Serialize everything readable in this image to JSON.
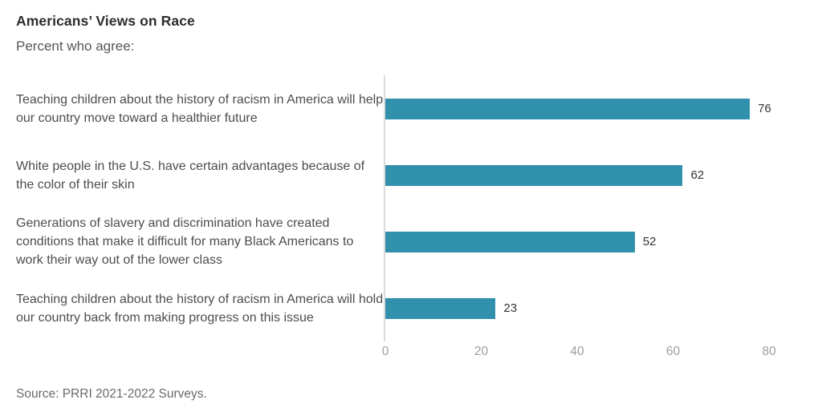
{
  "header": {
    "title": "Americans’ Views on Race",
    "subtitle": "Percent who agree:"
  },
  "chart_data": {
    "type": "bar",
    "orientation": "horizontal",
    "title": "Americans’ Views on Race",
    "subtitle": "Percent who agree:",
    "categories": [
      "Teaching children about the history of racism in America will help our country move toward a healthier future",
      "White people in the U.S. have certain advantages because of the color of their skin",
      "Generations of slavery and discrimination have created conditions that make it difficult for many Black Americans to work their way out of the lower class",
      "Teaching children about the history of racism in America will hold our country back from making progress on this issue"
    ],
    "values": [
      76,
      62,
      52,
      23
    ],
    "value_labels": [
      "76",
      "62",
      "52",
      "23"
    ],
    "xticks": [
      "0",
      "20",
      "40",
      "60",
      "80"
    ],
    "xlim": [
      0,
      80
    ],
    "grid": false,
    "legend": false
  },
  "colors": {
    "bar": "#3191ad",
    "axis_line": "#dcdcdc",
    "tick_text": "#9e9e9e",
    "label_text": "#4d4d4d",
    "title_text": "#2d2d2d",
    "value_text": "#333333",
    "source_text": "#696969"
  },
  "footer": {
    "source": "Source: PRRI 2021-2022 Surveys."
  }
}
